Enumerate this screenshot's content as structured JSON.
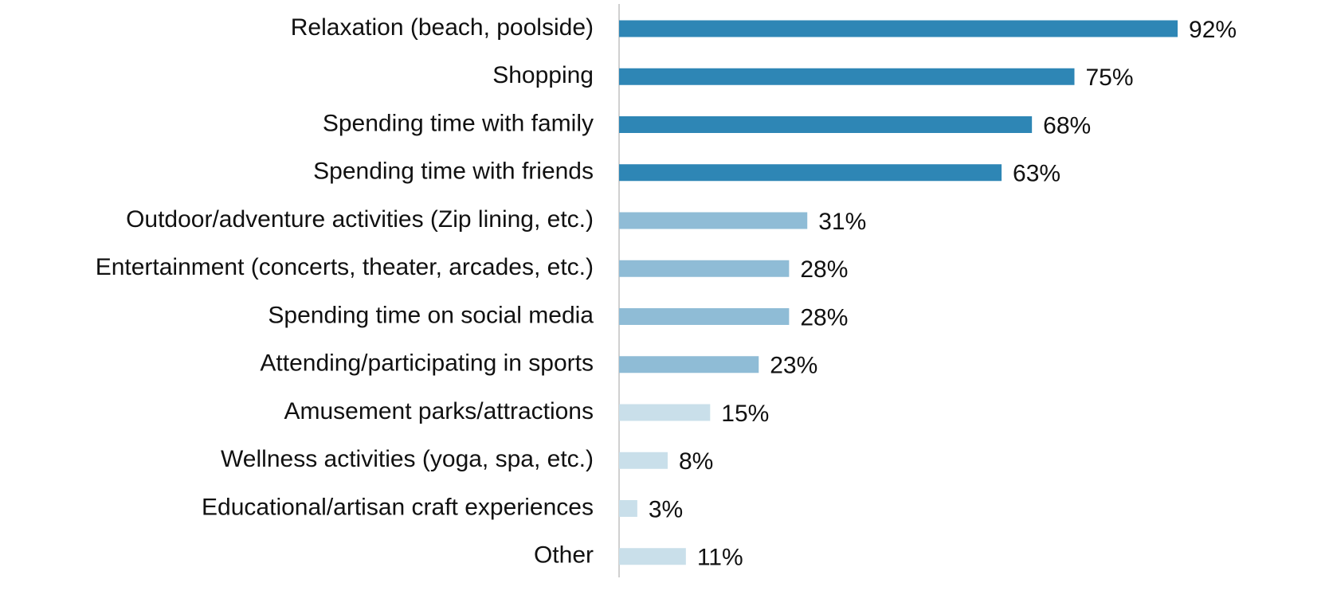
{
  "chart_data": {
    "type": "bar",
    "orientation": "horizontal",
    "categories": [
      "Relaxation (beach, poolside)",
      "Shopping",
      "Spending time with family",
      "Spending time with friends",
      "Outdoor/adventure activities (Zip lining, etc.)",
      "Entertainment (concerts, theater, arcades, etc.)",
      "Spending time on social media",
      "Attending/participating in sports",
      "Amusement parks/attractions",
      "Wellness activities (yoga, spa, etc.)",
      "Educational/artisan craft experiences",
      "Other"
    ],
    "values": [
      92,
      75,
      68,
      63,
      31,
      28,
      28,
      23,
      15,
      8,
      3,
      11
    ],
    "value_labels": [
      "92%",
      "75%",
      "68%",
      "63%",
      "31%",
      "28%",
      "28%",
      "23%",
      "15%",
      "8%",
      "3%",
      "11%"
    ],
    "colors": [
      "#2e86b5",
      "#2e86b5",
      "#2e86b5",
      "#2e86b5",
      "#8fbcd6",
      "#8fbcd6",
      "#8fbcd6",
      "#8fbcd6",
      "#c9dfea",
      "#c9dfea",
      "#c9dfea",
      "#c9dfea"
    ],
    "xlim": [
      0,
      100
    ]
  }
}
